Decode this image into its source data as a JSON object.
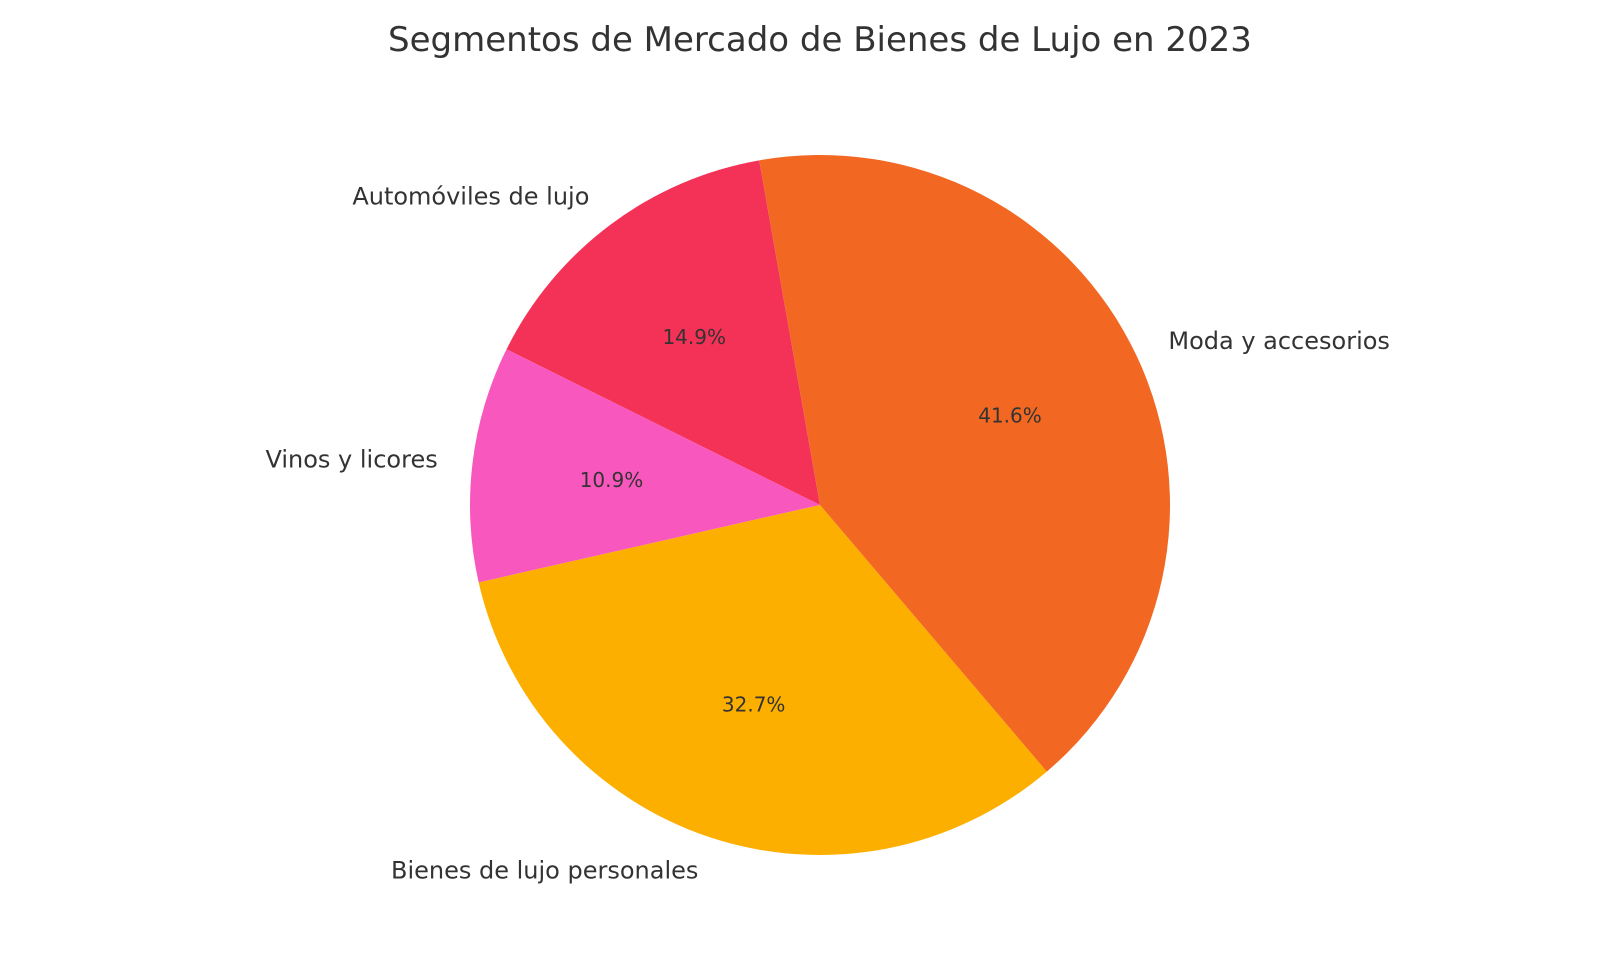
{
  "chart_data": {
    "type": "pie",
    "title": "Segmentos de Mercado de Bienes de Lujo en 2023",
    "start_angle_deg": 100,
    "direction": "counterclockwise",
    "slices": [
      {
        "label": "Automóviles de lujo",
        "value": 14.9,
        "pct_text": "14.9%",
        "color": "#F43157"
      },
      {
        "label": "Vinos y licores",
        "value": 10.9,
        "pct_text": "10.9%",
        "color": "#F857BE"
      },
      {
        "label": "Bienes de lujo personales",
        "value": 32.7,
        "pct_text": "32.7%",
        "color": "#FDAF00"
      },
      {
        "label": "Moda y accesorios",
        "value": 41.6,
        "pct_text": "41.6%",
        "color": "#F26822"
      }
    ]
  }
}
